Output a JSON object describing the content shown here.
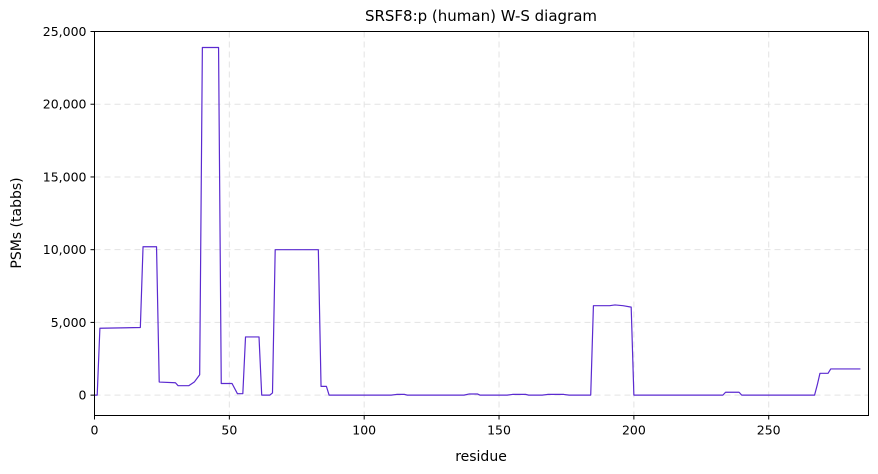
{
  "chart_data": {
    "type": "line",
    "title": "SRSF8:p (human) W-S diagram",
    "xlabel": "residue",
    "ylabel": "PSMs (tabbs)",
    "xlim": [
      0,
      287
    ],
    "ylim": [
      -1400,
      25000
    ],
    "x_ticks": [
      0,
      50,
      100,
      150,
      200,
      250
    ],
    "x_tick_labels": [
      "0",
      "50",
      "100",
      "150",
      "200",
      "250"
    ],
    "y_ticks": [
      0,
      5000,
      10000,
      15000,
      20000,
      25000
    ],
    "y_tick_labels": [
      "0",
      "5,000",
      "10,000",
      "15,000",
      "20,000",
      "25,000"
    ],
    "grid": true,
    "line_color": "#5b2ad0",
    "series": [
      {
        "x": [
          0,
          1,
          2,
          17,
          18,
          23,
          24,
          30,
          31,
          35,
          37,
          39,
          40,
          46,
          47,
          51,
          53,
          55,
          56,
          61,
          62,
          65,
          66,
          67,
          83,
          84,
          86,
          87,
          110,
          112,
          115,
          116,
          137,
          139,
          142,
          143,
          153,
          155,
          160,
          161,
          166,
          168,
          174,
          176,
          184,
          185,
          191,
          193,
          196,
          199,
          200,
          233,
          234,
          239,
          240,
          266,
          267,
          268,
          269,
          272,
          273,
          274,
          284
        ],
        "y": [
          0,
          0,
          4600,
          4650,
          10200,
          10200,
          900,
          850,
          650,
          650,
          900,
          1400,
          23900,
          23900,
          800,
          800,
          100,
          100,
          4000,
          4000,
          0,
          0,
          150,
          10000,
          10000,
          600,
          600,
          0,
          0,
          50,
          50,
          0,
          0,
          80,
          80,
          0,
          0,
          50,
          50,
          0,
          0,
          50,
          50,
          0,
          0,
          6150,
          6150,
          6200,
          6150,
          6050,
          0,
          0,
          200,
          200,
          0,
          0,
          0,
          700,
          1500,
          1500,
          1800,
          1800,
          1800
        ]
      }
    ]
  }
}
